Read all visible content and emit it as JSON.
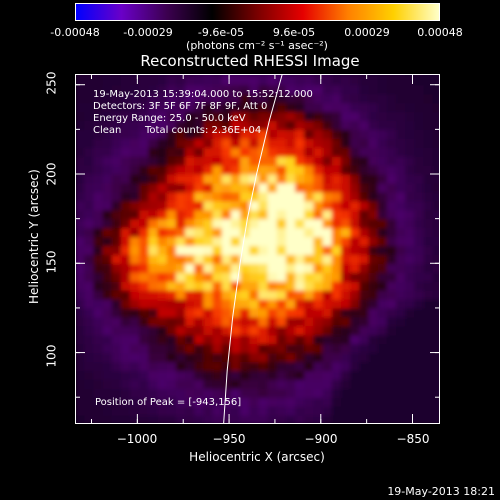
{
  "colorbar": {
    "ticks": [
      "-0.00048",
      "-0.00029",
      "-9.6e-05",
      "9.6e-05",
      "0.00029",
      "0.00048"
    ],
    "unit": "(photons cm⁻² s⁻¹ asec⁻²)",
    "colors": [
      "#0000ff",
      "#6a00c8",
      "#3c0050",
      "#000000",
      "#7a0000",
      "#e60000",
      "#ff8000",
      "#ffd000",
      "#ffffc8"
    ]
  },
  "chart_data": {
    "type": "heatmap",
    "title": "Reconstructed RHESSI Image",
    "xlabel": "Heliocentric X (arcsec)",
    "ylabel": "Heliocentric Y (arcsec)",
    "xlim": [
      -1034,
      -835
    ],
    "ylim": [
      60,
      256
    ],
    "xticks": [
      -1000,
      -950,
      -900,
      -850
    ],
    "yticks": [
      100,
      150,
      200,
      250
    ],
    "xtick_labels": [
      "−1000",
      "−950",
      "−900",
      "−850"
    ],
    "ytick_labels": [
      "100",
      "150",
      "200",
      "250"
    ],
    "peak": [
      -943,
      156
    ],
    "limb_curve": [
      [
        -921,
        256
      ],
      [
        -928,
        230
      ],
      [
        -935,
        200
      ],
      [
        -940,
        175
      ],
      [
        -944,
        150
      ],
      [
        -948,
        120
      ],
      [
        -951,
        90
      ],
      [
        -953,
        60
      ]
    ],
    "annotations": {
      "time_range": "19-May-2013 15:39:04.000 to 15:52:12.000",
      "detectors": "Detectors: 3F 5F 6F 7F 8F 9F, Att 0",
      "energy": "Energy Range: 25.0 - 50.0 keV",
      "clean": "Clean",
      "total_counts": "Total counts: 2.36E+04",
      "peak": "Position of Peak = [-943,156]"
    }
  },
  "footer": "19-May-2013 18:21"
}
